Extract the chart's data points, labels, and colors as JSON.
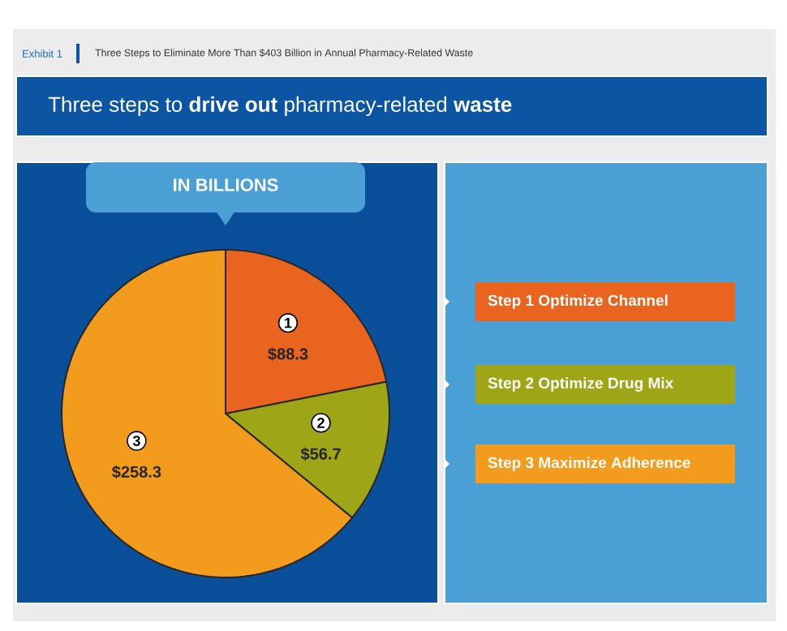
{
  "chart_data": {
    "type": "pie",
    "title": "Three Steps to Eliminate More Than $403 Billion in Annual Pharmacy-Related Waste",
    "subtitle": "Three steps to **drive out** pharmacy-related **waste**",
    "categories": [
      "1",
      "2",
      "3"
    ],
    "values": [
      88.3,
      56.7,
      258.3
    ],
    "colors": [
      "#e8641f",
      "#9ea516",
      "#f29b1c"
    ],
    "value_labels": [
      "$88.3",
      "$56.7",
      "$258.3"
    ],
    "annotations": [
      "Exhibit 1",
      "IN BILLIONS",
      "Step 1 Optimize Channel",
      "Step 2 Optimize Drug Mix",
      "Step 3 Maximize Adherence"
    ]
  }
}
